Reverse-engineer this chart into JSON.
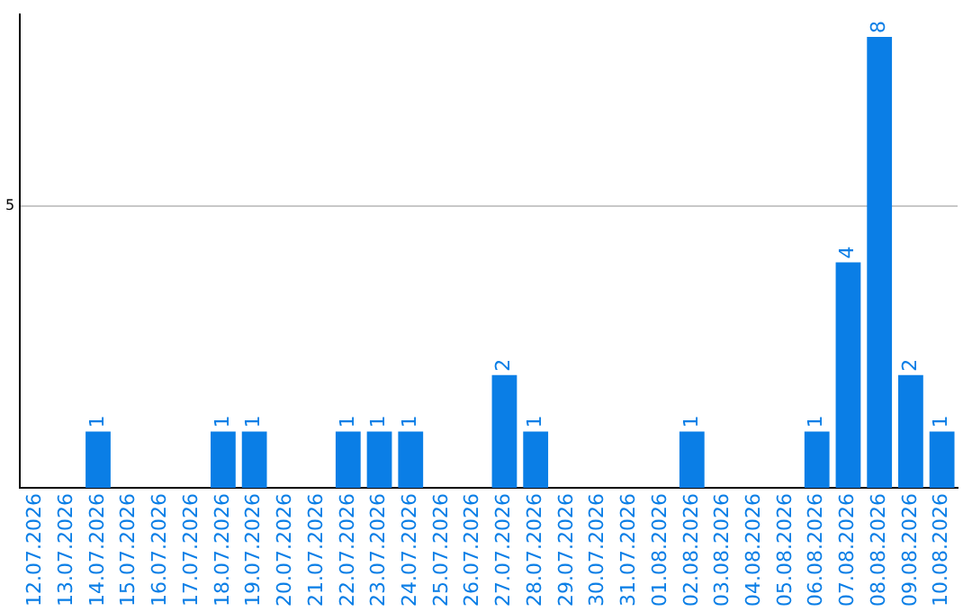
{
  "chart_data": {
    "type": "bar",
    "categories": [
      "12.07.2026",
      "13.07.2026",
      "14.07.2026",
      "15.07.2026",
      "16.07.2026",
      "17.07.2026",
      "18.07.2026",
      "19.07.2026",
      "20.07.2026",
      "21.07.2026",
      "22.07.2026",
      "23.07.2026",
      "24.07.2026",
      "25.07.2026",
      "26.07.2026",
      "27.07.2026",
      "28.07.2026",
      "29.07.2026",
      "30.07.2026",
      "31.07.2026",
      "01.08.2026",
      "02.08.2026",
      "03.08.2026",
      "04.08.2026",
      "05.08.2026",
      "06.08.2026",
      "07.08.2026",
      "08.08.2026",
      "09.08.2026",
      "10.08.2026"
    ],
    "values": [
      0,
      0,
      1,
      0,
      0,
      0,
      1,
      1,
      0,
      0,
      1,
      1,
      1,
      0,
      0,
      2,
      1,
      0,
      0,
      0,
      0,
      1,
      0,
      0,
      0,
      1,
      4,
      8,
      2,
      1
    ],
    "value_labels": [
      null,
      null,
      "1",
      null,
      null,
      null,
      "1",
      "1",
      null,
      null,
      "1",
      "1",
      "1",
      null,
      null,
      "2",
      "1",
      null,
      null,
      null,
      null,
      "1",
      null,
      null,
      null,
      "1",
      "4",
      "8",
      "2",
      "1"
    ],
    "color": "#0a7ee6",
    "ylim": [
      0,
      8.4
    ],
    "yticks": [
      5
    ],
    "grid": "y",
    "legend": false
  }
}
